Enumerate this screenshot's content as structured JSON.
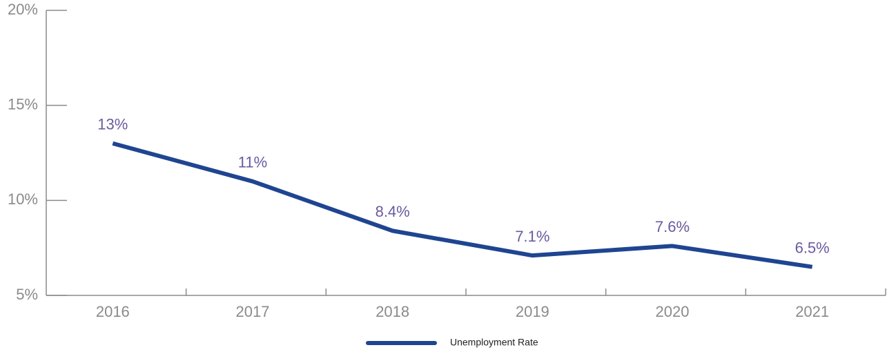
{
  "chart_data": {
    "type": "line",
    "categories": [
      "2016",
      "2017",
      "2018",
      "2019",
      "2020",
      "2021"
    ],
    "series": [
      {
        "name": "Unemployment Rate",
        "color": "#1f4591",
        "values": [
          13,
          11,
          8.4,
          7.1,
          7.6,
          6.5
        ],
        "value_labels": [
          "13%",
          "11%",
          "8.4%",
          "7.1%",
          "7.6%",
          "6.5%"
        ]
      }
    ],
    "ylim": [
      5,
      20
    ],
    "yticks": [
      {
        "value": 5,
        "label": "5%"
      },
      {
        "value": 10,
        "label": "10%"
      },
      {
        "value": 15,
        "label": "15%"
      },
      {
        "value": 20,
        "label": "20%"
      }
    ],
    "legend": "bottom"
  }
}
